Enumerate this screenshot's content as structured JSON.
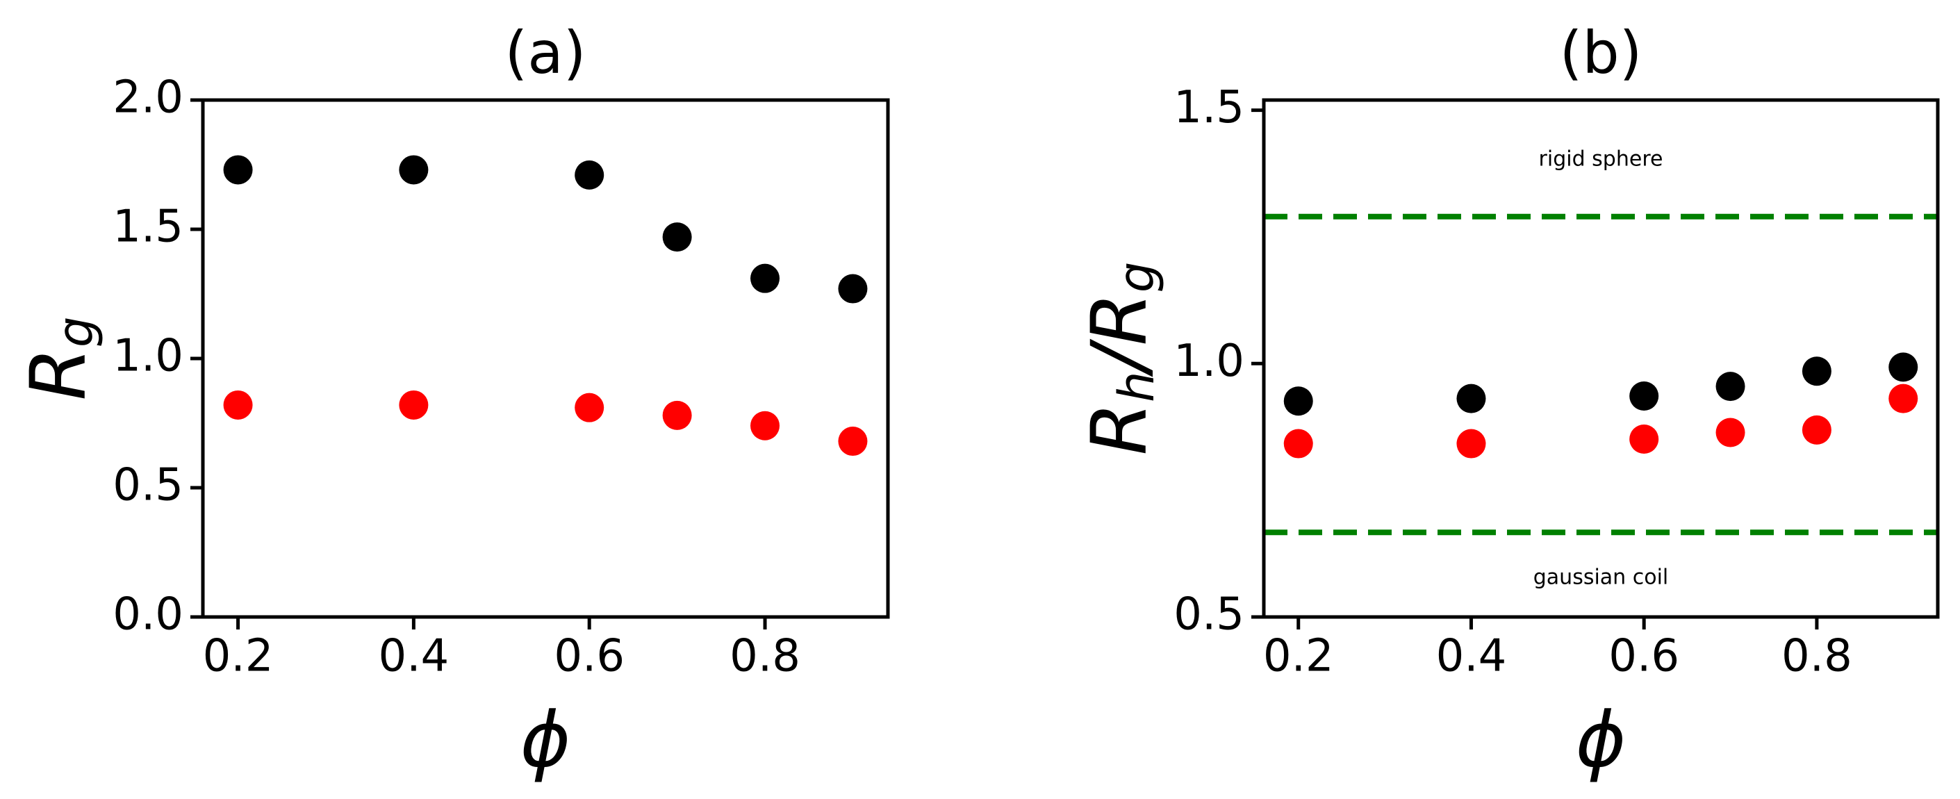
{
  "chart_data": [
    {
      "type": "scatter",
      "title": "(a)",
      "xlabel": "ϕ",
      "ylabel": [
        {
          "text": "R"
        },
        {
          "text": "g",
          "sub": true
        }
      ],
      "x": [
        0.2,
        0.4,
        0.6,
        0.7,
        0.8,
        0.9
      ],
      "series": [
        {
          "color": "#000000",
          "values": [
            1.73,
            1.73,
            1.71,
            1.47,
            1.31,
            1.27
          ]
        },
        {
          "color": "#ff0000",
          "values": [
            0.82,
            0.82,
            0.81,
            0.78,
            0.74,
            0.68
          ]
        }
      ],
      "xlim": [
        0.16,
        0.94
      ],
      "xticks": [
        0.2,
        0.4,
        0.6,
        0.8
      ],
      "ylim": [
        0,
        2
      ],
      "yticks": [
        {
          "value": 0,
          "label": "0.0"
        },
        {
          "value": 0.5,
          "label": "0.5"
        },
        {
          "value": 1,
          "label": "1.0"
        },
        {
          "value": 1.5,
          "label": "1.5"
        },
        {
          "value": 2,
          "label": "2.0"
        }
      ]
    },
    {
      "type": "scatter",
      "title": "(b)",
      "xlabel": "ϕ",
      "ylabel": [
        {
          "text": "R"
        },
        {
          "text": "h",
          "sub": true
        },
        {
          "text": "/R"
        },
        {
          "text": "g",
          "sub": true
        }
      ],
      "x": [
        0.2,
        0.4,
        0.6,
        0.7,
        0.8,
        0.9
      ],
      "series": [
        {
          "color": "#000000",
          "values": [
            0.926,
            0.931,
            0.936,
            0.955,
            0.985,
            0.993
          ]
        },
        {
          "color": "#ff0000",
          "values": [
            0.842,
            0.842,
            0.851,
            0.864,
            0.869,
            0.931
          ]
        }
      ],
      "hlines": [
        {
          "value": 1.29,
          "label": "rigid sphere",
          "color": "#008000",
          "label_side": "above"
        },
        {
          "value": 0.667,
          "label": "gaussian coil",
          "color": "#008000",
          "label_side": "below"
        }
      ],
      "xlim": [
        0.16,
        0.94
      ],
      "xticks": [
        0.2,
        0.4,
        0.6,
        0.8
      ],
      "ylim": [
        0.5,
        1.52
      ],
      "yticks": [
        {
          "value": 0.5,
          "label": "0.5"
        },
        {
          "value": 1,
          "label": "1.0"
        },
        {
          "value": 1.5,
          "label": "1.5"
        }
      ]
    }
  ]
}
